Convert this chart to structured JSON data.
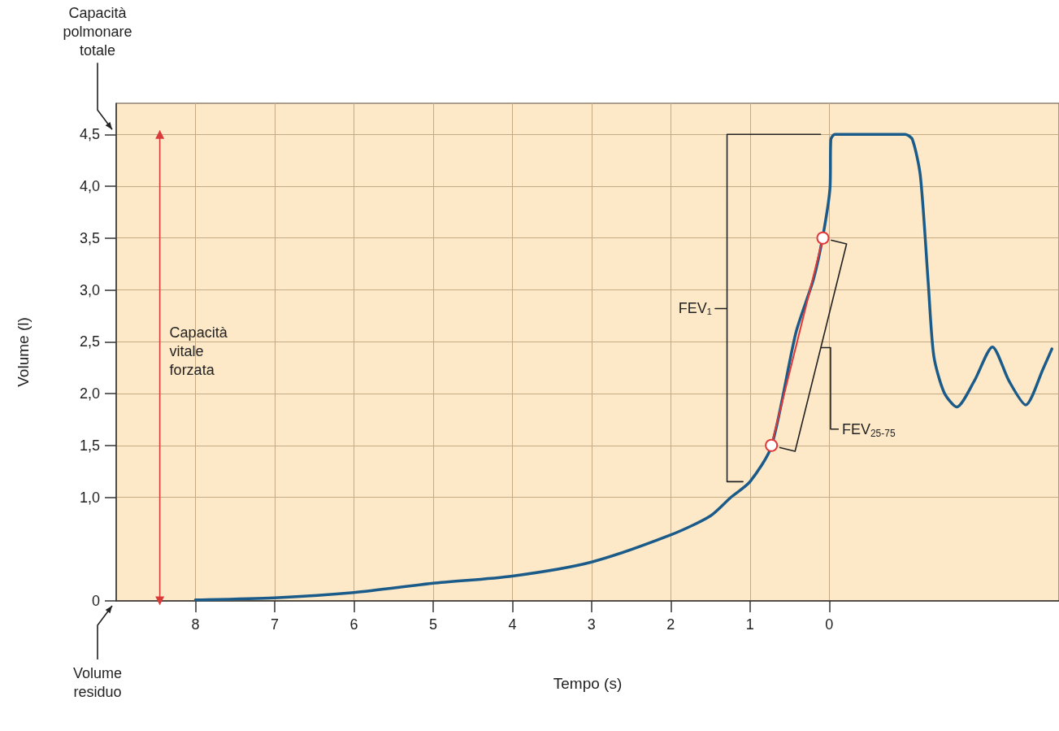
{
  "chart_data": {
    "type": "line",
    "xlabel": "Tempo (s)",
    "ylabel": "Volume (l)",
    "xlim": [
      9,
      -2.9
    ],
    "xticks": [
      8,
      7,
      6,
      5,
      4,
      3,
      2,
      1,
      0
    ],
    "ylim": [
      0,
      4.8
    ],
    "yticks": [
      0,
      {
        "value": 1,
        "label": "1,0"
      },
      {
        "value": 1.5,
        "label": "1,5"
      },
      {
        "value": 2,
        "label": "2,0"
      },
      {
        "value": 2.5,
        "label": "2,5"
      },
      {
        "value": 3,
        "label": "3,0"
      },
      {
        "value": 3.5,
        "label": "3,5"
      },
      {
        "value": 4,
        "label": "4,0"
      },
      {
        "value": 4.5,
        "label": "4,5"
      }
    ],
    "grid": true,
    "line_style": "solid",
    "series": [
      {
        "color": "#1b5b8a",
        "marker": "none",
        "x": [
          8,
          7,
          6,
          5,
          4,
          3,
          1.99,
          1.5,
          1.24,
          1,
          0.73,
          0.42,
          0.2,
          0.08,
          -0.01,
          -0.02,
          -0.07,
          -0.96,
          -1.05,
          -1.15,
          -1.25,
          -1.32,
          -1.45,
          -1.61,
          -1.83,
          -2.06,
          -2.27,
          -2.48,
          -2.7,
          -2.81
        ],
        "values": [
          0.01,
          0.03,
          0.08,
          0.17,
          0.24,
          0.375,
          0.64,
          0.82,
          1.0,
          1.15,
          1.49,
          2.59,
          3.1,
          3.52,
          3.99,
          4.45,
          4.5,
          4.5,
          4.45,
          4.1,
          3.06,
          2.36,
          2.01,
          1.87,
          2.12,
          2.45,
          2.12,
          1.89,
          2.24,
          2.43
        ]
      },
      {
        "color": "#e0383a",
        "marker": "circle",
        "x": [
          0.73,
          0.08
        ],
        "values": [
          1.5,
          3.5
        ]
      },
      {
        "name": "Capacità vitale forzata",
        "color": "#d93a3a",
        "marker": "triangle",
        "x": [
          8.45,
          8.45
        ],
        "values": [
          0,
          4.5
        ]
      },
      {
        "name": "FEV₁",
        "color": "#222222",
        "marker": "none",
        "x": [
          0.11,
          1.29,
          1.29,
          1.44,
          1.29,
          1.29,
          1.09
        ],
        "values": [
          4.5,
          4.5,
          2.82,
          2.82,
          2.82,
          1.15,
          1.15
        ]
      }
    ],
    "annotations": [
      "Capacità polmonare totale",
      "Volume residuo",
      "FEV$_{25-75}$"
    ]
  }
}
